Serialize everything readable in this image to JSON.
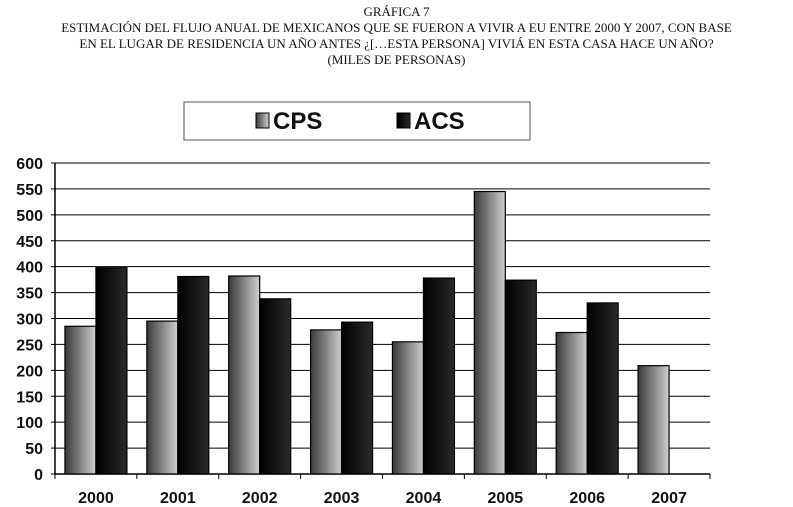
{
  "header": {
    "line1": "GRÁFICA 7",
    "line2": "ESTIMACIÓN DEL FLUJO ANUAL DE MEXICANOS QUE SE FUERON A VIVIR A EU ENTRE 2000 Y 2007, CON BASE",
    "line3": "EN EL LUGAR DE RESIDENCIA UN AÑO ANTES ¿[…ESTA PERSONA] VIVIÁ EN ESTA CASA HACE UN AÑO?",
    "line4": "(MILES DE PERSONAS)"
  },
  "colors": {
    "cps_dark": "#3a3a3a",
    "cps_light": "#cfcfcf",
    "acs_dark": "#000000",
    "acs_light": "#2a2a2a"
  },
  "chart_data": {
    "type": "bar",
    "title": "GRÁFICA 7",
    "categories": [
      "2000",
      "2001",
      "2002",
      "2003",
      "2004",
      "2005",
      "2006",
      "2007"
    ],
    "series": [
      {
        "name": "CPS",
        "values": [
          285,
          295,
          382,
          278,
          255,
          545,
          273,
          209
        ]
      },
      {
        "name": "ACS",
        "values": [
          398,
          381,
          338,
          293,
          378,
          374,
          330,
          null
        ]
      }
    ],
    "xlabel": "",
    "ylabel": "",
    "ylim": [
      0,
      600
    ],
    "yticks": [
      0,
      50,
      100,
      150,
      200,
      250,
      300,
      350,
      400,
      450,
      500,
      550,
      600
    ],
    "grid": true,
    "legend": "top-center"
  }
}
